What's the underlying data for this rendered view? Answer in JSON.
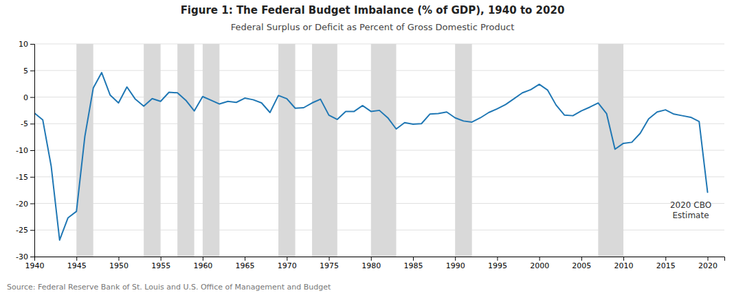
{
  "chart_data": {
    "type": "line",
    "title": "Figure 1:  The Federal Budget Imbalance (% of GDP), 1940 to 2020",
    "subtitle": "Federal Surplus or Deficit as Percent of Gross Domestic Product",
    "source": "Source: Federal Reserve Bank of St. Louis and U.S. Office of Management and Budget",
    "annotations": [
      {
        "text": "2020 CBO\nEstimate",
        "x": 2018.0,
        "y": -19.5
      }
    ],
    "recession_bands": {
      "color": "#d9d9d9",
      "values": [
        [
          1945,
          1947
        ],
        [
          1953,
          1955
        ],
        [
          1957,
          1959
        ],
        [
          1960,
          1962
        ],
        [
          1969,
          1971
        ],
        [
          1973,
          1976
        ],
        [
          1980,
          1983
        ],
        [
          1990,
          1992
        ],
        [
          2007,
          2010
        ]
      ]
    },
    "xlim": [
      1940,
      2022
    ],
    "ylim": [
      -30,
      10
    ],
    "xticks": [
      1940,
      1945,
      1950,
      1955,
      1960,
      1965,
      1970,
      1975,
      1980,
      1985,
      1990,
      1995,
      2000,
      2005,
      2010,
      2015,
      2020
    ],
    "yticks": [
      10,
      5,
      0,
      -5,
      -10,
      -15,
      -20,
      -25,
      -30
    ],
    "grid": true,
    "x": [
      1940,
      1941,
      1942,
      1943,
      1944,
      1945,
      1946,
      1947,
      1948,
      1949,
      1950,
      1951,
      1952,
      1953,
      1954,
      1955,
      1956,
      1957,
      1958,
      1959,
      1960,
      1961,
      1962,
      1963,
      1964,
      1965,
      1966,
      1967,
      1968,
      1969,
      1970,
      1971,
      1972,
      1973,
      1974,
      1975,
      1976,
      1977,
      1978,
      1979,
      1980,
      1981,
      1982,
      1983,
      1984,
      1985,
      1986,
      1987,
      1988,
      1989,
      1990,
      1991,
      1992,
      1993,
      1994,
      1995,
      1996,
      1997,
      1998,
      1999,
      2000,
      2001,
      2002,
      2003,
      2004,
      2005,
      2006,
      2007,
      2008,
      2009,
      2010,
      2011,
      2012,
      2013,
      2014,
      2015,
      2016,
      2017,
      2018,
      2019,
      2020
    ],
    "values": [
      -3.0,
      -4.3,
      -13.0,
      -26.9,
      -22.7,
      -21.5,
      -7.4,
      1.7,
      4.6,
      0.4,
      -1.1,
      1.9,
      -0.4,
      -1.7,
      -0.3,
      -0.8,
      0.9,
      0.8,
      -0.6,
      -2.6,
      0.1,
      -0.6,
      -1.3,
      -0.8,
      -1.0,
      -0.2,
      -0.5,
      -1.1,
      -2.9,
      0.3,
      -0.3,
      -2.1,
      -2.0,
      -1.1,
      -0.4,
      -3.4,
      -4.2,
      -2.7,
      -2.7,
      -1.6,
      -2.7,
      -2.5,
      -3.9,
      -6.0,
      -4.8,
      -5.1,
      -5.0,
      -3.2,
      -3.1,
      -2.8,
      -3.9,
      -4.5,
      -4.7,
      -3.9,
      -2.9,
      -2.2,
      -1.4,
      -0.3,
      0.8,
      1.4,
      2.4,
      1.3,
      -1.5,
      -3.4,
      -3.5,
      -2.6,
      -1.9,
      -1.1,
      -3.1,
      -9.8,
      -8.7,
      -8.5,
      -6.8,
      -4.1,
      -2.8,
      -2.4,
      -3.2,
      -3.5,
      -3.8,
      -4.6,
      -17.9
    ]
  }
}
